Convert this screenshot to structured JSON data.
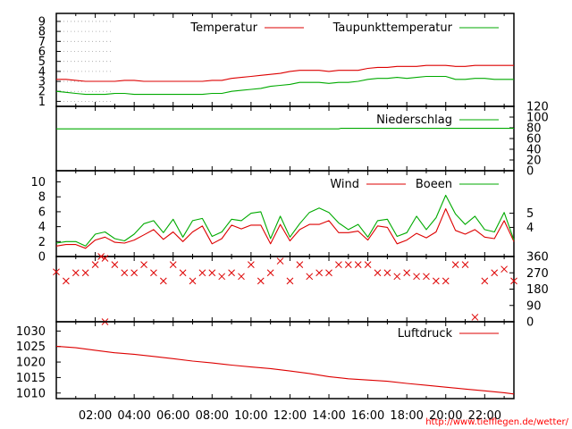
{
  "url": "http://www.tiefflegen.de/wetter/",
  "colors": {
    "red": "#dd0000",
    "green": "#00aa00",
    "black": "#000000",
    "grid": "#a0a0a0"
  },
  "chart_data": [
    {
      "id": "temp",
      "type": "line",
      "ylim": [
        0.5,
        9.8
      ],
      "yticks": [
        1,
        2,
        3,
        4,
        5,
        6,
        7,
        8,
        9
      ],
      "ytick_side": "left",
      "series": [
        {
          "name": "Temperatur",
          "color": "#dd0000",
          "x": [
            0,
            0.5,
            1,
            1.5,
            2,
            2.5,
            3,
            3.5,
            4,
            4.5,
            5,
            5.5,
            6,
            6.5,
            7,
            7.5,
            8,
            8.5,
            9,
            9.5,
            10,
            10.5,
            11,
            11.5,
            12,
            12.5,
            13,
            13.5,
            14,
            14.5,
            15,
            15.5,
            16,
            16.5,
            17,
            17.5,
            18,
            18.5,
            19,
            19.5,
            20,
            20.5,
            21,
            21.5,
            22,
            22.5,
            23,
            23.5
          ],
          "y": [
            3.2,
            3.2,
            3.1,
            3.0,
            3.0,
            3.0,
            3.0,
            3.1,
            3.1,
            3.0,
            3.0,
            3.0,
            3.0,
            3.0,
            3.0,
            3.0,
            3.1,
            3.1,
            3.3,
            3.4,
            3.5,
            3.6,
            3.7,
            3.8,
            4.0,
            4.1,
            4.1,
            4.1,
            4.0,
            4.1,
            4.1,
            4.1,
            4.3,
            4.4,
            4.4,
            4.5,
            4.5,
            4.5,
            4.6,
            4.6,
            4.6,
            4.5,
            4.5,
            4.6,
            4.6,
            4.6,
            4.6,
            4.6
          ]
        },
        {
          "name": "Taupunkttemperatur",
          "color": "#00aa00",
          "x": [
            0,
            0.5,
            1,
            1.5,
            2,
            2.5,
            3,
            3.5,
            4,
            4.5,
            5,
            5.5,
            6,
            6.5,
            7,
            7.5,
            8,
            8.5,
            9,
            9.5,
            10,
            10.5,
            11,
            11.5,
            12,
            12.5,
            13,
            13.5,
            14,
            14.5,
            15,
            15.5,
            16,
            16.5,
            17,
            17.5,
            18,
            18.5,
            19,
            19.5,
            20,
            20.5,
            21,
            21.5,
            22,
            22.5,
            23,
            23.5
          ],
          "y": [
            2.0,
            1.9,
            1.8,
            1.7,
            1.7,
            1.7,
            1.8,
            1.8,
            1.7,
            1.7,
            1.7,
            1.7,
            1.7,
            1.7,
            1.7,
            1.7,
            1.8,
            1.8,
            2.0,
            2.1,
            2.2,
            2.3,
            2.5,
            2.6,
            2.7,
            2.9,
            2.9,
            2.9,
            2.8,
            2.9,
            2.9,
            3.0,
            3.2,
            3.3,
            3.3,
            3.4,
            3.3,
            3.4,
            3.5,
            3.5,
            3.5,
            3.2,
            3.2,
            3.3,
            3.3,
            3.2,
            3.2,
            3.2
          ]
        }
      ]
    },
    {
      "id": "precip",
      "type": "line",
      "ylim": [
        0,
        120
      ],
      "yticks": [
        0,
        20,
        40,
        60,
        80,
        100,
        120
      ],
      "ytick_side": "right",
      "series": [
        {
          "name": "Niederschlag",
          "color": "#00aa00",
          "x": [
            0,
            10,
            14.5,
            14.6,
            23.5
          ],
          "y": [
            78,
            78,
            78,
            79,
            79
          ]
        }
      ]
    },
    {
      "id": "wind",
      "type": "line",
      "ylim": [
        0,
        11.5
      ],
      "yticks": [
        0,
        2,
        4,
        6,
        8,
        10
      ],
      "ytick_side": "left",
      "right_ticks": [
        {
          "label": "4",
          "value": 3.9
        },
        {
          "label": "5",
          "value": 5.8
        }
      ],
      "series": [
        {
          "name": "Wind",
          "color": "#dd0000",
          "x": [
            0,
            0.5,
            1,
            1.5,
            2,
            2.5,
            3,
            3.5,
            4,
            4.5,
            5,
            5.5,
            6,
            6.5,
            7,
            7.5,
            8,
            8.5,
            9,
            9.5,
            10,
            10.5,
            11,
            11.5,
            12,
            12.5,
            13,
            13.5,
            14,
            14.5,
            15,
            15.5,
            16,
            16.5,
            17,
            17.5,
            18,
            18.5,
            19,
            19.5,
            20,
            20.5,
            21,
            21.5,
            22,
            22.5,
            23,
            23.5
          ],
          "y": [
            1.4,
            1.6,
            1.6,
            1.1,
            2.2,
            2.6,
            1.9,
            1.8,
            2.2,
            2.9,
            3.6,
            2.3,
            3.3,
            2.0,
            3.3,
            4.1,
            1.7,
            2.4,
            4.2,
            3.7,
            4.2,
            4.2,
            1.7,
            4.3,
            2.1,
            3.6,
            4.3,
            4.3,
            4.8,
            3.2,
            3.2,
            3.4,
            2.2,
            4.1,
            3.9,
            1.7,
            2.2,
            3.1,
            2.5,
            3.3,
            6.4,
            3.5,
            3.0,
            3.6,
            2.6,
            2.4,
            4.8,
            2.0
          ]
        },
        {
          "name": "Boeen",
          "color": "#00aa00",
          "x": [
            0,
            0.5,
            1,
            1.5,
            2,
            2.5,
            3,
            3.5,
            4,
            4.5,
            5,
            5.5,
            6,
            6.5,
            7,
            7.5,
            8,
            8.5,
            9,
            9.5,
            10,
            10.5,
            11,
            11.5,
            12,
            12.5,
            13,
            13.5,
            14,
            14.5,
            15,
            15.5,
            16,
            16.5,
            17,
            17.5,
            18,
            18.5,
            19,
            19.5,
            20,
            20.5,
            21,
            21.5,
            22,
            22.5,
            23,
            23.5
          ],
          "y": [
            1.8,
            2.0,
            2.0,
            1.4,
            3.0,
            3.3,
            2.4,
            2.1,
            3.0,
            4.4,
            4.8,
            3.2,
            5.0,
            2.6,
            4.8,
            5.1,
            2.7,
            3.3,
            5.0,
            4.8,
            5.8,
            6.0,
            2.4,
            5.4,
            2.6,
            4.4,
            5.9,
            6.5,
            5.9,
            4.5,
            3.6,
            4.3,
            2.6,
            4.8,
            5.0,
            2.7,
            3.2,
            5.4,
            3.6,
            5.2,
            8.2,
            5.7,
            4.3,
            5.4,
            3.6,
            3.3,
            5.9,
            2.2
          ]
        }
      ]
    },
    {
      "id": "direction",
      "type": "scatter",
      "ylim": [
        0,
        360
      ],
      "yticks": [
        0,
        90,
        180,
        270,
        360
      ],
      "ytick_side": "right",
      "marker": "x",
      "color": "#dd0000",
      "x": [
        0,
        0.5,
        1,
        1.5,
        2,
        2.5,
        3,
        3.5,
        4,
        4.5,
        5,
        5.5,
        6,
        6.5,
        7,
        7.5,
        8,
        8.5,
        9,
        9.5,
        10,
        10.5,
        11,
        11.5,
        12,
        12.5,
        13,
        13.5,
        14,
        14.5,
        15,
        15.5,
        16,
        16.5,
        17,
        17.5,
        18,
        18.5,
        19,
        19.5,
        20,
        20.5,
        21,
        21.5,
        22,
        22.5,
        23,
        23.5,
        2.5,
        2.3
      ],
      "y": [
        275,
        225,
        270,
        270,
        315,
        350,
        315,
        270,
        270,
        315,
        270,
        225,
        315,
        270,
        225,
        270,
        270,
        250,
        270,
        250,
        315,
        225,
        270,
        335,
        225,
        315,
        250,
        270,
        270,
        315,
        315,
        315,
        315,
        270,
        270,
        250,
        270,
        250,
        250,
        225,
        225,
        315,
        315,
        25,
        225,
        270,
        290,
        225,
        0,
        360
      ]
    },
    {
      "id": "pressure",
      "type": "line",
      "ylim": [
        1008.2,
        1033
      ],
      "yticks": [
        1010,
        1015,
        1020,
        1025,
        1030
      ],
      "ytick_side": "left",
      "xticks": [
        "02:00",
        "04:00",
        "06:00",
        "08:00",
        "10:00",
        "12:00",
        "14:00",
        "16:00",
        "18:00",
        "20:00",
        "22:00"
      ],
      "series": [
        {
          "name": "Luftdruck",
          "color": "#dd0000",
          "x": [
            0,
            1,
            2,
            3,
            4,
            5,
            6,
            7,
            8,
            9,
            10,
            11,
            12,
            13,
            14,
            15,
            16,
            17,
            18,
            19,
            20,
            21,
            22,
            23,
            23.5
          ],
          "y": [
            1025.1,
            1024.6,
            1023.8,
            1023.0,
            1022.5,
            1021.8,
            1021.1,
            1020.3,
            1019.7,
            1019.0,
            1018.4,
            1017.9,
            1017.1,
            1016.3,
            1015.3,
            1014.6,
            1014.2,
            1013.8,
            1013.1,
            1012.5,
            1011.9,
            1011.3,
            1010.7,
            1010.1,
            1009.7
          ]
        }
      ]
    }
  ]
}
